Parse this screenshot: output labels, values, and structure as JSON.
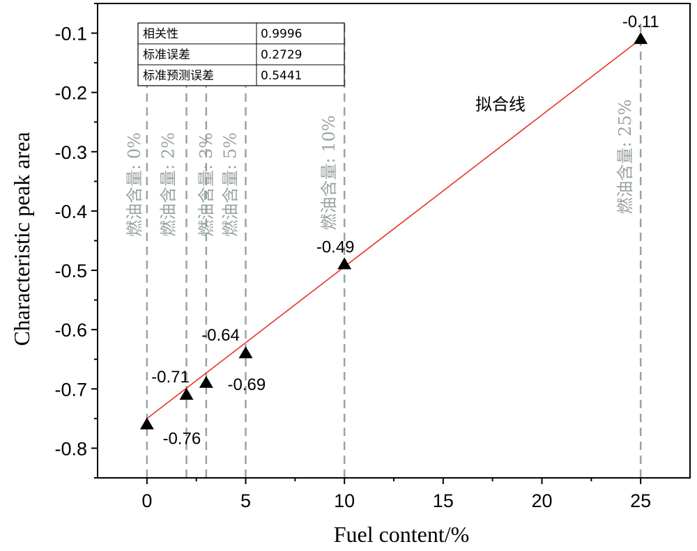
{
  "chart_data": {
    "type": "scatter",
    "xlabel": "Fuel content/%",
    "ylabel": "Characteristic peak area",
    "xlim": [
      -2.5,
      27.5
    ],
    "ylim": [
      -0.85,
      -0.05
    ],
    "xticks": [
      "0",
      "5",
      "10",
      "15",
      "20",
      "25"
    ],
    "yticks": [
      "-0.1",
      "-0.2",
      "-0.3",
      "-0.4",
      "-0.5",
      "-0.6",
      "-0.7",
      "-0.8"
    ],
    "grid": false,
    "points": [
      {
        "x": 0,
        "y": -0.76,
        "label": "-0.76"
      },
      {
        "x": 2,
        "y": -0.71,
        "label": "-0.71"
      },
      {
        "x": 3,
        "y": -0.69,
        "label": "-0.69"
      },
      {
        "x": 5,
        "y": -0.64,
        "label": "-0.64"
      },
      {
        "x": 10,
        "y": -0.49,
        "label": "-0.49"
      },
      {
        "x": 25,
        "y": -0.11,
        "label": "-0.11"
      }
    ],
    "fit_line": {
      "label": "拟合线",
      "color": "#e8322b",
      "x": [
        0,
        25
      ],
      "y": [
        -0.75,
        -0.11
      ]
    },
    "reference_lines": [
      {
        "x": 0,
        "label": "燃油含量: 0%"
      },
      {
        "x": 2,
        "label": "燃油含量: 2%"
      },
      {
        "x": 3,
        "label": "燃油含量: 3%"
      },
      {
        "x": 5,
        "label": "燃油含量: 5%"
      },
      {
        "x": 10,
        "label": "燃油含量: 10%"
      },
      {
        "x": 25,
        "label": "燃油含量: 25%"
      }
    ],
    "stats_table": [
      {
        "name": "相关性",
        "value": "0.9996"
      },
      {
        "name": "标准误差",
        "value": "0.2729"
      },
      {
        "name": "标准预测误差",
        "value": "0.5441"
      }
    ],
    "colors": {
      "marker": "#000000",
      "fit": "#e8322b",
      "reference": "#9aa3a3"
    }
  }
}
